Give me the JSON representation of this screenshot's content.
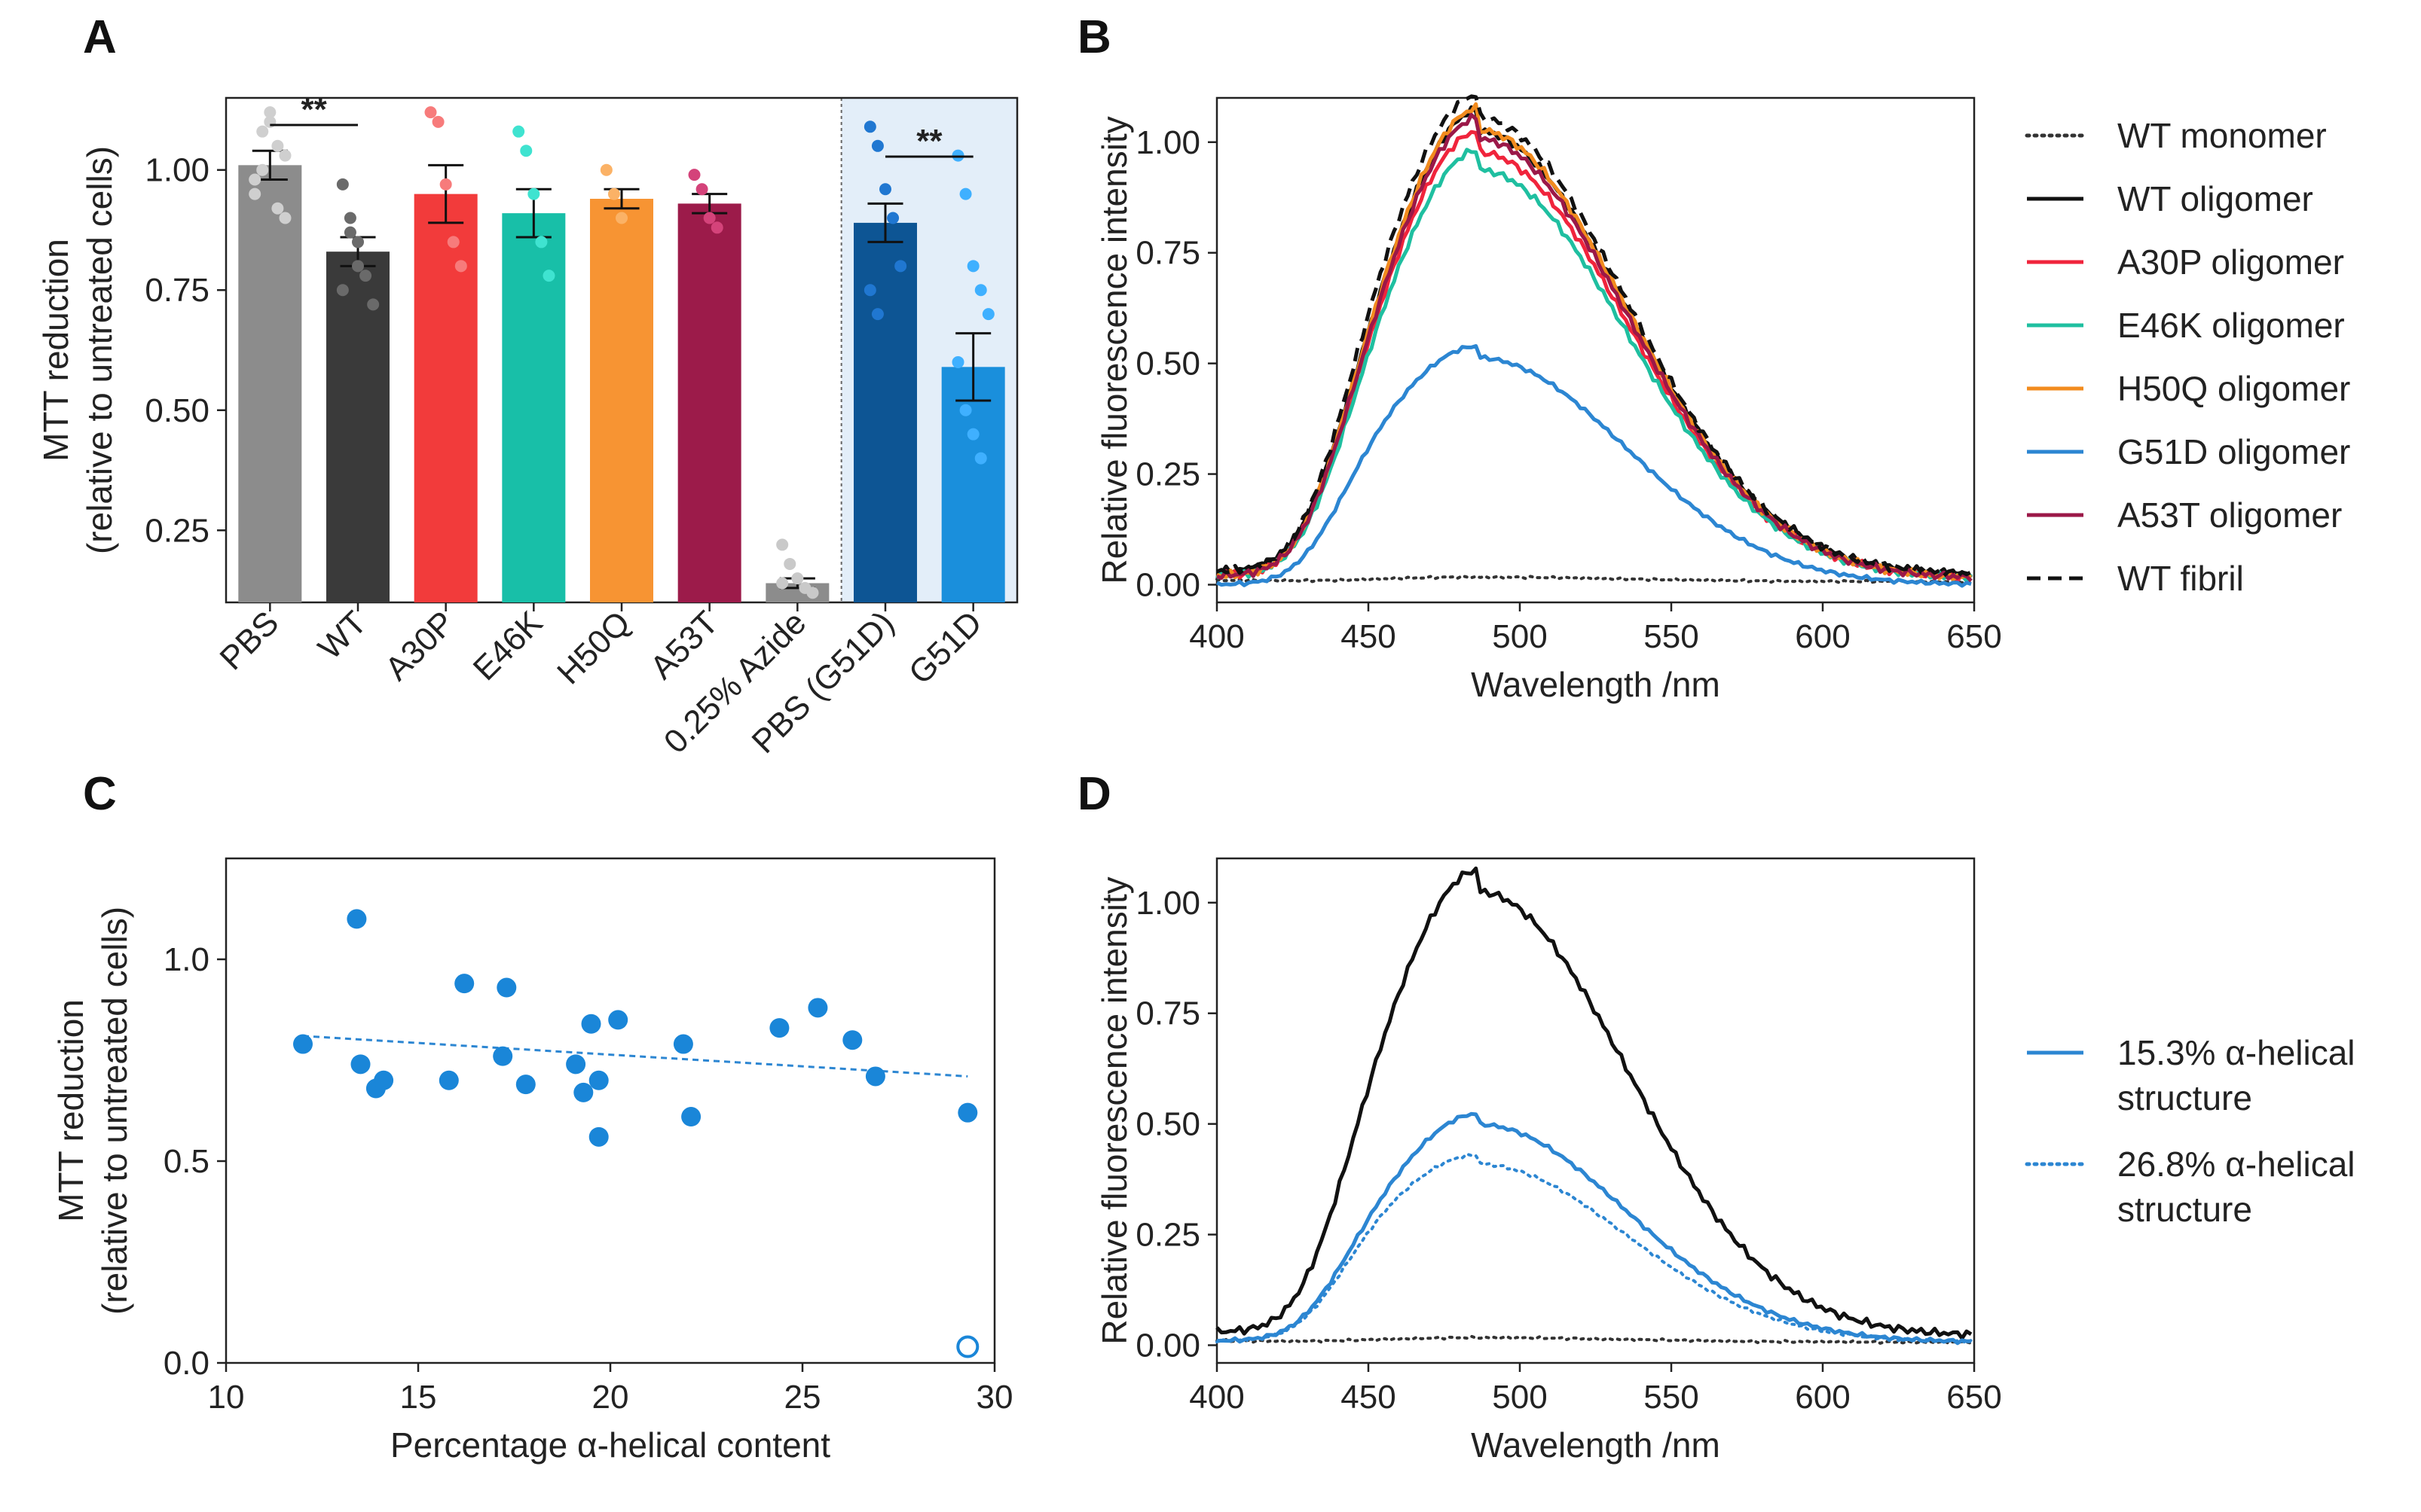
{
  "colors": {
    "gray": "#8c8c8c",
    "black": "#3a3a3a",
    "red": "#f23b3b",
    "teal": "#18bfa8",
    "orange": "#f79433",
    "maroon": "#9c1b4a",
    "navy": "#0d5594",
    "blue": "#1a8fdc",
    "curve_blue": "#1f86cf"
  },
  "chart_data": [
    {
      "panel": "A",
      "type": "bar",
      "ylabel": "MTT reduction",
      "ylabel2": "(relative to untreated cells)",
      "ylim": [
        0.1,
        1.15
      ],
      "yticks": [
        "0.25",
        "0.50",
        "0.75",
        "1.00"
      ],
      "categories": [
        "PBS",
        "WT",
        "A30P",
        "E46K",
        "H50Q",
        "A53T",
        "0.25% Azide",
        "PBS (G51D)",
        "G51D"
      ],
      "values": [
        1.01,
        0.83,
        0.95,
        0.91,
        0.94,
        0.93,
        0.14,
        0.89,
        0.59
      ],
      "errors": [
        0.03,
        0.03,
        0.06,
        0.05,
        0.02,
        0.02,
        0.01,
        0.04,
        0.07
      ],
      "shaded_group": [
        "PBS (G51D)",
        "G51D"
      ],
      "significance": [
        {
          "between": [
            "PBS",
            "WT"
          ],
          "label": "**"
        },
        {
          "between": [
            "PBS (G51D)",
            "G51D"
          ],
          "label": "**"
        }
      ],
      "points": [
        [
          0.95,
          1.0,
          1.12,
          1.05,
          0.9,
          0.98,
          1.08,
          1.1,
          0.92,
          1.03
        ],
        [
          0.97,
          0.9,
          0.85,
          0.78,
          0.72,
          0.75,
          0.87,
          0.8
        ],
        [
          1.12,
          1.1,
          0.97,
          0.85,
          0.8
        ],
        [
          1.08,
          1.04,
          0.95,
          0.85,
          0.78
        ],
        [
          1.0,
          0.95,
          0.9
        ],
        [
          0.99,
          0.96,
          0.9,
          0.88
        ],
        [
          0.22,
          0.18,
          0.15,
          0.13,
          0.12,
          0.14
        ],
        [
          1.09,
          1.05,
          0.96,
          0.9,
          0.8,
          0.75,
          0.7
        ],
        [
          1.03,
          0.95,
          0.8,
          0.75,
          0.7,
          0.6,
          0.5,
          0.45,
          0.4
        ]
      ]
    },
    {
      "panel": "B",
      "type": "line",
      "xlabel": "Wavelength /nm",
      "ylabel": "Relative fluorescence intensity",
      "xlim": [
        400,
        650
      ],
      "ylim": [
        -0.04,
        1.1
      ],
      "xticks": [
        "400",
        "450",
        "500",
        "550",
        "600",
        "650"
      ],
      "yticks": [
        "0.00",
        "0.25",
        "0.50",
        "0.75",
        "1.00"
      ],
      "series": [
        {
          "name": "WT monomer",
          "peak": 0.01,
          "shoulder": 0.005,
          "style": "dotted",
          "color": "#333333",
          "offset": 0.01
        },
        {
          "name": "WT oligomer",
          "peak": 1.0,
          "shoulder": 0.62,
          "style": "solid",
          "color": "#111111",
          "offset": 0.03
        },
        {
          "name": "A30P oligomer",
          "peak": 0.96,
          "shoulder": 0.6,
          "style": "solid",
          "color": "#f0243c",
          "offset": 0.02
        },
        {
          "name": "E46K oligomer",
          "peak": 0.92,
          "shoulder": 0.57,
          "style": "solid",
          "color": "#1fbfa0",
          "offset": 0.02
        },
        {
          "name": "H50Q oligomer",
          "peak": 1.01,
          "shoulder": 0.63,
          "style": "solid",
          "color": "#f28b1e",
          "offset": 0.02
        },
        {
          "name": "G51D oligomer",
          "peak": 0.51,
          "shoulder": 0.37,
          "style": "solid",
          "color": "#2c86d2",
          "offset": 0.0
        },
        {
          "name": "A53T oligomer",
          "peak": 0.99,
          "shoulder": 0.61,
          "style": "solid",
          "color": "#9b1848",
          "offset": 0.02
        },
        {
          "name": "WT fibril",
          "peak": 1.03,
          "shoulder": 0.68,
          "style": "dashed",
          "color": "#111111",
          "offset": 0.03
        }
      ]
    },
    {
      "panel": "C",
      "type": "scatter",
      "xlabel": "Percentage α-helical content",
      "ylabel": "MTT reduction",
      "ylabel2": "(relative to untreated cells)",
      "xlim": [
        10,
        30
      ],
      "ylim": [
        0,
        1.25
      ],
      "xticks": [
        "10",
        "15",
        "20",
        "25",
        "30"
      ],
      "yticks": [
        "0.0",
        "0.5",
        "1.0"
      ],
      "points": [
        {
          "x": 12.0,
          "y": 0.79
        },
        {
          "x": 13.4,
          "y": 1.1
        },
        {
          "x": 13.5,
          "y": 0.74
        },
        {
          "x": 13.9,
          "y": 0.68
        },
        {
          "x": 14.1,
          "y": 0.7
        },
        {
          "x": 15.8,
          "y": 0.7
        },
        {
          "x": 16.2,
          "y": 0.94
        },
        {
          "x": 17.2,
          "y": 0.76
        },
        {
          "x": 17.3,
          "y": 0.93
        },
        {
          "x": 17.8,
          "y": 0.69
        },
        {
          "x": 19.1,
          "y": 0.74
        },
        {
          "x": 19.3,
          "y": 0.67
        },
        {
          "x": 19.5,
          "y": 0.84
        },
        {
          "x": 19.7,
          "y": 0.7
        },
        {
          "x": 19.7,
          "y": 0.56
        },
        {
          "x": 20.2,
          "y": 0.85
        },
        {
          "x": 21.9,
          "y": 0.79
        },
        {
          "x": 22.1,
          "y": 0.61
        },
        {
          "x": 24.4,
          "y": 0.83
        },
        {
          "x": 25.4,
          "y": 0.88
        },
        {
          "x": 26.3,
          "y": 0.8
        },
        {
          "x": 26.9,
          "y": 0.71
        },
        {
          "x": 29.3,
          "y": 0.62
        }
      ],
      "open_points": [
        {
          "x": 29.3,
          "y": 0.04
        }
      ],
      "trend": {
        "x0": 12.0,
        "y0": 0.81,
        "x1": 29.3,
        "y1": 0.71
      }
    },
    {
      "panel": "D",
      "type": "line",
      "xlabel": "Wavelength /nm",
      "ylabel": "Relative fluorescence intensity",
      "xlim": [
        400,
        650
      ],
      "ylim": [
        -0.04,
        1.1
      ],
      "xticks": [
        "400",
        "450",
        "500",
        "550",
        "600",
        "650"
      ],
      "yticks": [
        "0.00",
        "0.25",
        "0.50",
        "0.75",
        "1.00"
      ],
      "series": [
        {
          "name": "",
          "peak": 1.0,
          "shoulder": 0.64,
          "style": "solid",
          "color": "#111111",
          "offset": 0.03
        },
        {
          "name": "",
          "peak": 0.01,
          "shoulder": 0.005,
          "style": "dotted",
          "color": "#333333",
          "offset": 0.01
        },
        {
          "name": "15.3% α-helical structure",
          "peak": 0.49,
          "shoulder": 0.32,
          "style": "solid",
          "color": "#2c86d2",
          "offset": 0.01
        },
        {
          "name": "26.8% α-helical structure",
          "peak": 0.4,
          "shoulder": 0.3,
          "style": "dotted",
          "color": "#2c86d2",
          "offset": 0.01
        }
      ],
      "legend": [
        {
          "line1": "15.3% α-helical",
          "line2": "structure",
          "style": "solid",
          "color": "#2c86d2"
        },
        {
          "line1": "26.8% α-helical",
          "line2": "structure",
          "style": "dotted",
          "color": "#2c86d2"
        }
      ]
    }
  ]
}
